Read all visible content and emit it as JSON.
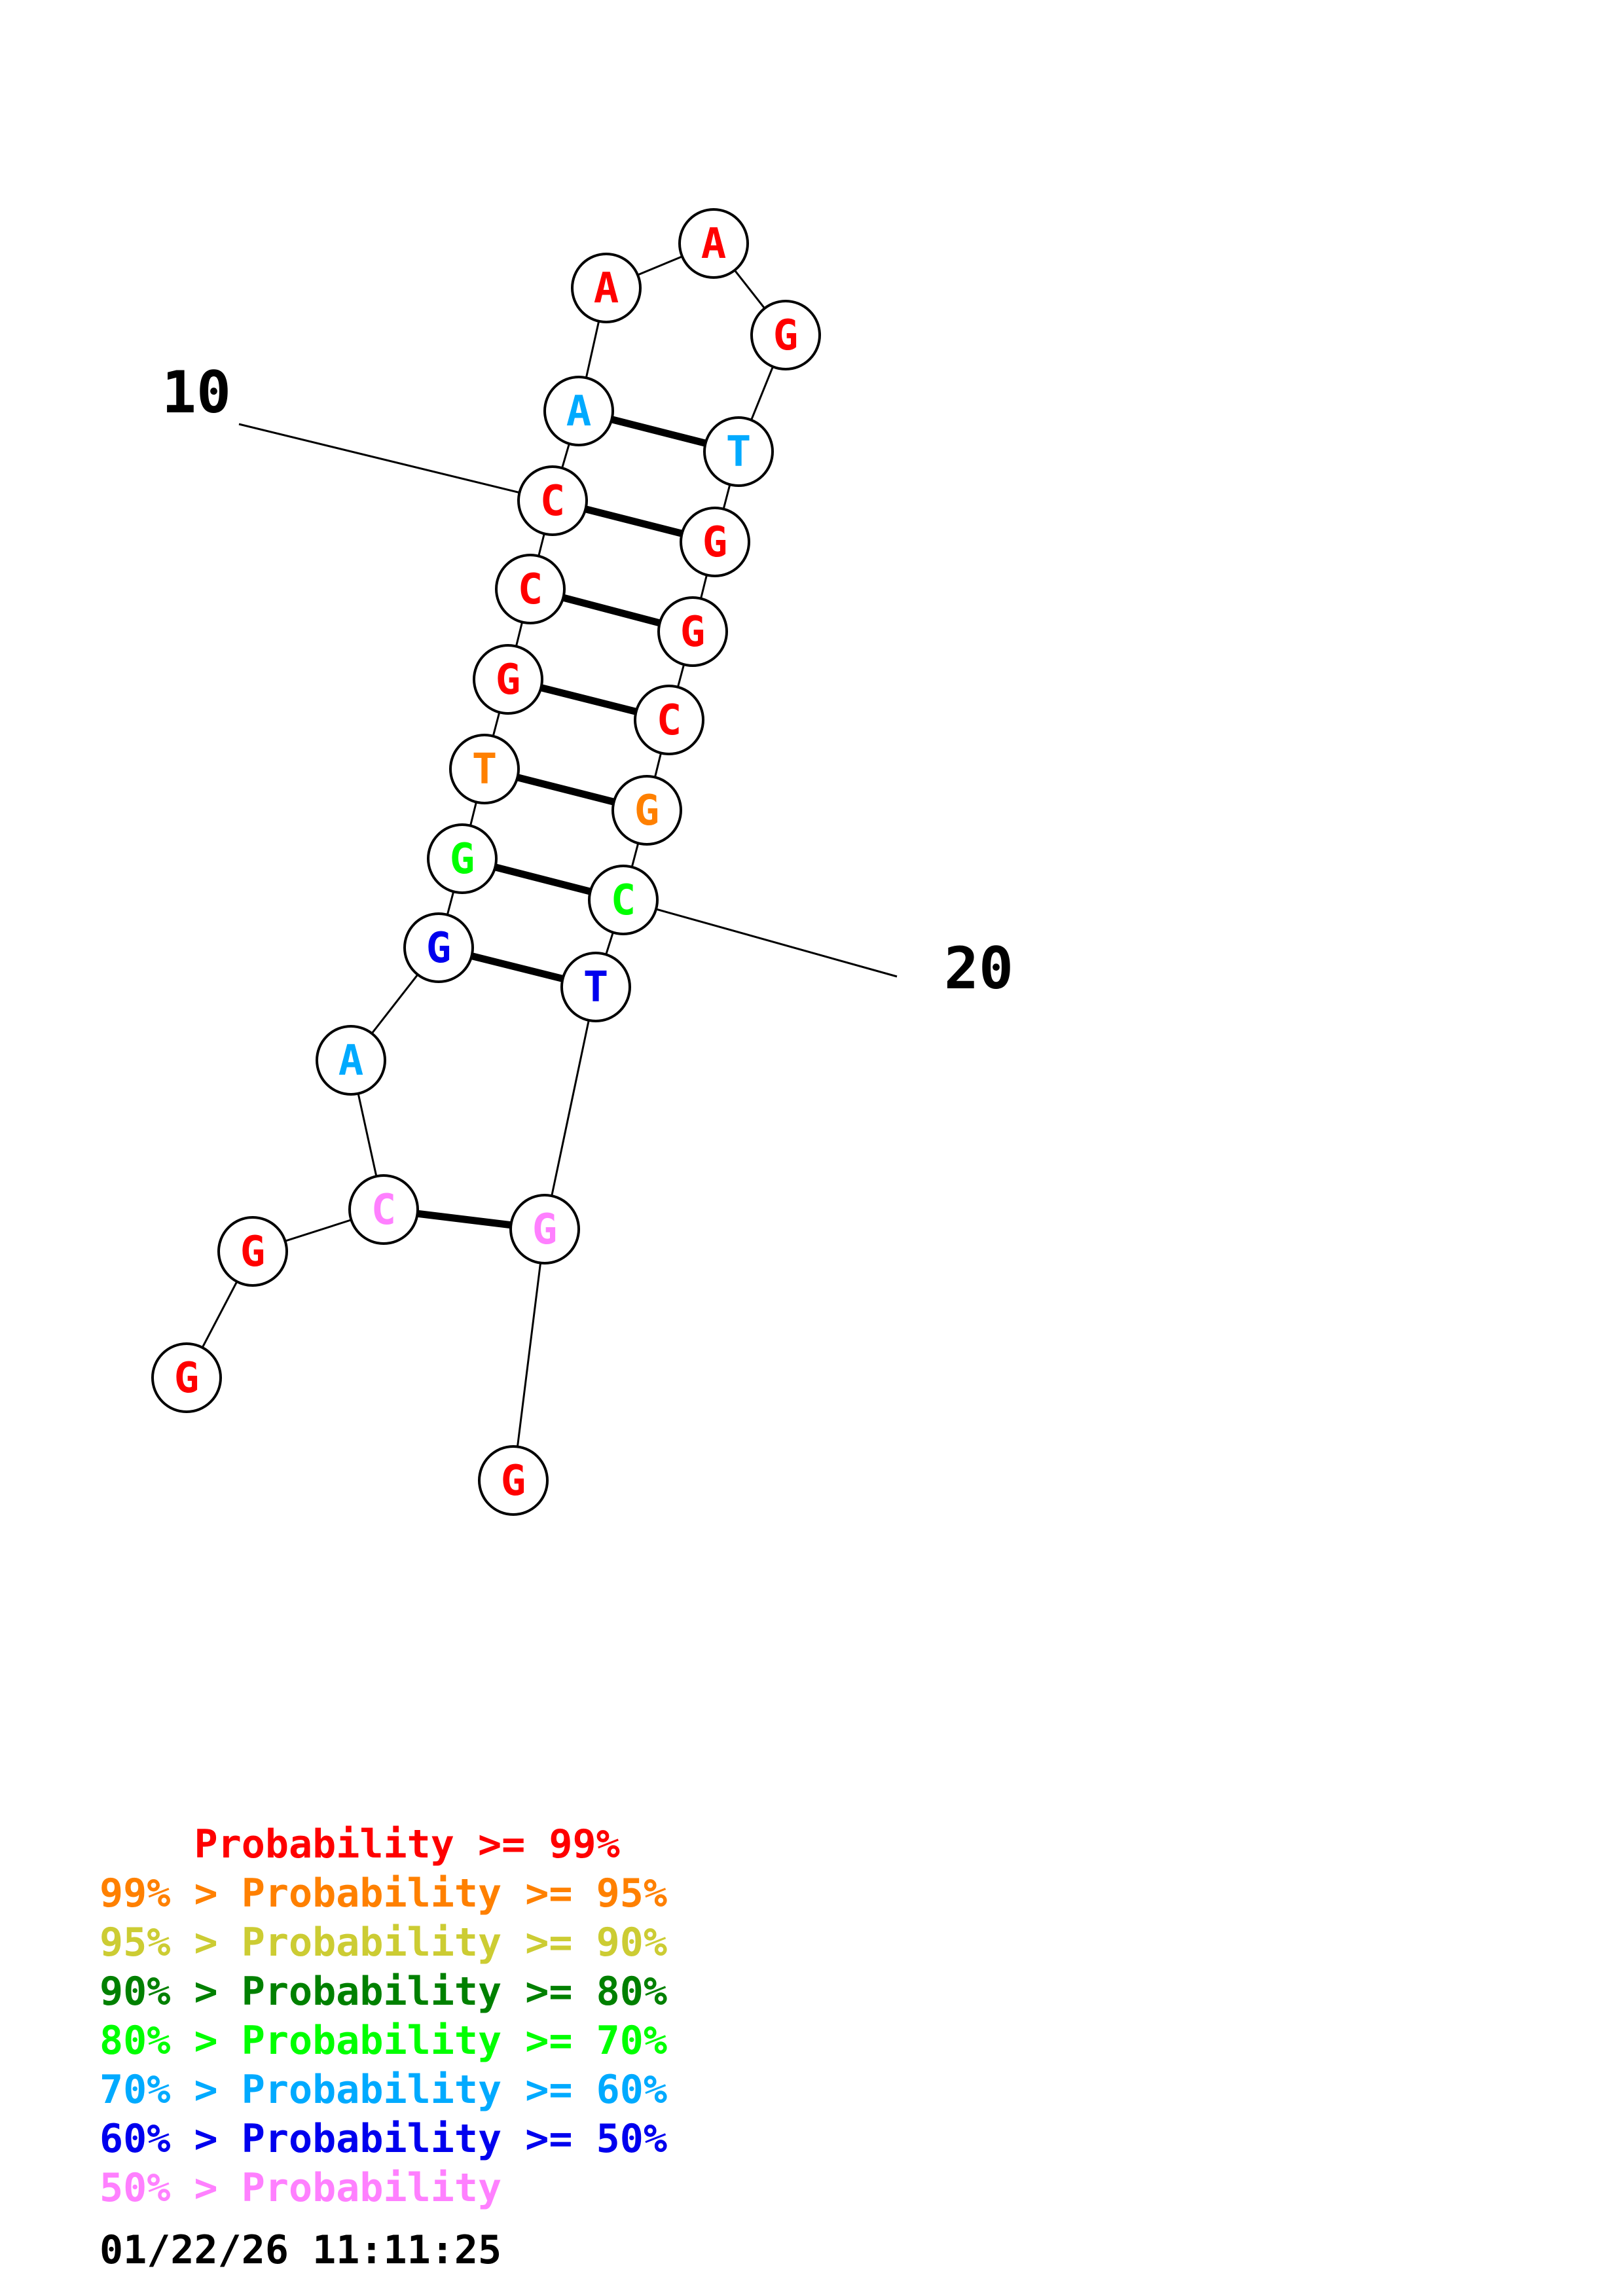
{
  "colors": {
    "p99": "#ff0000",
    "p95": "#ff8000",
    "p90": "#cccc33",
    "p80": "#008000",
    "p70": "#00ff00",
    "p60": "#00aaff",
    "p50": "#0000ee",
    "plow": "#ff80ff"
  },
  "nucleotides": [
    {
      "base": "G",
      "color": "p99"
    },
    {
      "base": "G",
      "color": "p99"
    },
    {
      "base": "C",
      "color": "plow"
    },
    {
      "base": "A",
      "color": "p60"
    },
    {
      "base": "G",
      "color": "p50"
    },
    {
      "base": "G",
      "color": "p70"
    },
    {
      "base": "T",
      "color": "p95"
    },
    {
      "base": "G",
      "color": "p99"
    },
    {
      "base": "C",
      "color": "p99"
    },
    {
      "base": "C",
      "color": "p99"
    },
    {
      "base": "A",
      "color": "p60"
    },
    {
      "base": "A",
      "color": "p99"
    },
    {
      "base": "A",
      "color": "p99"
    },
    {
      "base": "G",
      "color": "p99"
    },
    {
      "base": "T",
      "color": "p60"
    },
    {
      "base": "G",
      "color": "p99"
    },
    {
      "base": "G",
      "color": "p99"
    },
    {
      "base": "C",
      "color": "p99"
    },
    {
      "base": "G",
      "color": "p95"
    },
    {
      "base": "C",
      "color": "p70"
    },
    {
      "base": "T",
      "color": "p50"
    },
    {
      "base": "G",
      "color": "plow"
    },
    {
      "base": "G",
      "color": "p99"
    }
  ],
  "pairs": [
    [
      3,
      22
    ],
    [
      5,
      21
    ],
    [
      6,
      20
    ],
    [
      7,
      19
    ],
    [
      8,
      18
    ],
    [
      9,
      17
    ],
    [
      10,
      16
    ],
    [
      11,
      15
    ]
  ],
  "index_labels": [
    {
      "text": "10",
      "nuc": 10
    },
    {
      "text": "20",
      "nuc": 20
    }
  ],
  "legend": [
    {
      "prefix": "    ",
      "text": "Probability >= 99%",
      "color": "p99"
    },
    {
      "prefix": "99% > ",
      "text": "Probability >= 95%",
      "color": "p95"
    },
    {
      "prefix": "95% > ",
      "text": "Probability >= 90%",
      "color": "p90"
    },
    {
      "prefix": "90% > ",
      "text": "Probability >= 80%",
      "color": "p80"
    },
    {
      "prefix": "80% > ",
      "text": "Probability >= 70%",
      "color": "p70"
    },
    {
      "prefix": "70% > ",
      "text": "Probability >= 60%",
      "color": "p60"
    },
    {
      "prefix": "60% > ",
      "text": "Probability >= 50%",
      "color": "p50"
    },
    {
      "prefix": "50% > ",
      "text": "Probability",
      "color": "plow"
    }
  ],
  "timestamp": "01/22/26 11:11:25"
}
